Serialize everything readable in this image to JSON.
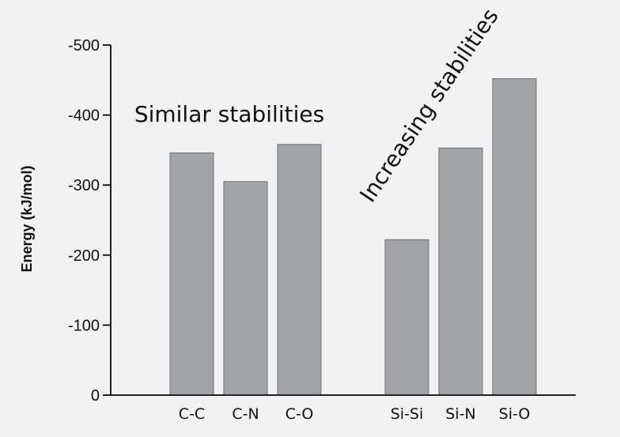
{
  "chart_data": {
    "type": "bar",
    "categories": [
      "C-C",
      "C-N",
      "C-O",
      "Si-Si",
      "Si-N",
      "Si-O"
    ],
    "values": [
      -346,
      -305,
      -358,
      -222,
      -353,
      -452
    ],
    "ylabel": "Energy (kJ/mol)",
    "xlabel": "",
    "ylim": [
      0,
      -500
    ],
    "yticks": [
      0,
      -100,
      -200,
      -300,
      -400,
      -500
    ],
    "ytick_labels": [
      "0",
      "-100",
      "-200",
      "-300",
      "-400",
      "-500"
    ],
    "grid": false,
    "annotations": [
      "Similar stabilities",
      "Increasing stabilities"
    ]
  }
}
